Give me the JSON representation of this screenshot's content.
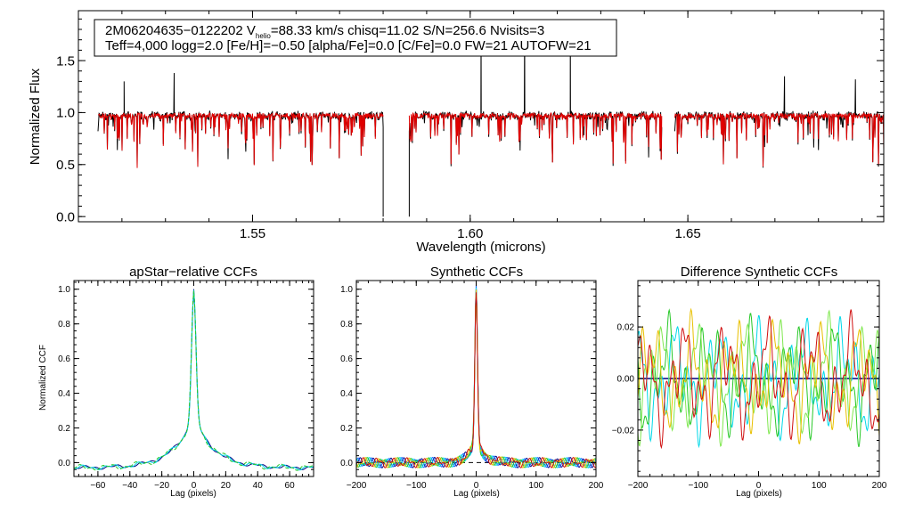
{
  "colors": {
    "background": "#ffffff",
    "axes": "#000000",
    "observed": "#000000",
    "model": "#e00000",
    "ccf_dark": "#000080",
    "ccf_blue": "#1060ff",
    "ccf_cyan": "#00d8e8",
    "ccf_green": "#28c828",
    "ccf_lightgreen": "#80e850",
    "ccf_yellow": "#e8c000",
    "ccf_orange": "#f08000",
    "ccf_red": "#d01010"
  },
  "chart_data": [
    {
      "id": "spectrum",
      "type": "line",
      "xlabel": "Wavelength (microns)",
      "ylabel": "Normalized Flux",
      "xlim": [
        1.51,
        1.695
      ],
      "ylim": [
        -0.05,
        1.98
      ],
      "xticks": [
        1.55,
        1.6,
        1.65
      ],
      "xtick_labels": [
        "1.55",
        "1.60",
        "1.65"
      ],
      "yticks": [
        0.0,
        0.5,
        1.0,
        1.5
      ],
      "ytick_labels": [
        "0.0",
        "0.5",
        "1.0",
        "1.5"
      ],
      "annotation": {
        "star_id": "2M06204635−0122202",
        "vhelio_prefix": "V",
        "vhelio_sub": "helio",
        "vhelio_rest": "=88.33 km/s  chisq=11.02  S/N=256.6  Nvisits=3",
        "line2": "Teff=4,000 logg=2.0 [Fe/H]=−0.50 [alpha/Fe]=0.0 [C/Fe]=0.0 FW=21 AUTOFW=21"
      },
      "chips": [
        {
          "x_start": 1.5145,
          "x_end": 1.58
        },
        {
          "x_start": 1.586,
          "x_end": 1.644
        },
        {
          "x_start": 1.647,
          "x_end": 1.695
        }
      ],
      "series": [
        {
          "name": "observed",
          "color": "#000000"
        },
        {
          "name": "model",
          "color": "#e00000"
        }
      ],
      "emission_spikes": [
        {
          "x": 1.5205,
          "y": 1.3
        },
        {
          "x": 1.532,
          "y": 1.38
        },
        {
          "x": 1.6025,
          "y": 1.8
        },
        {
          "x": 1.6125,
          "y": 1.84
        },
        {
          "x": 1.623,
          "y": 1.84
        },
        {
          "x": 1.6465,
          "y": 1.22
        },
        {
          "x": 1.6722,
          "y": 1.35
        },
        {
          "x": 1.6885,
          "y": 1.32
        }
      ],
      "gap_drops": [
        {
          "x": 1.58,
          "y": 0.0
        },
        {
          "x": 1.586,
          "y": 0.0
        }
      ]
    },
    {
      "id": "apstar_ccf",
      "type": "line",
      "title": "apStar−relative CCFs",
      "xlabel": "Lag (pixels)",
      "ylabel": "Normalized CCF",
      "xlim": [
        -75,
        75
      ],
      "ylim": [
        -0.08,
        1.05
      ],
      "xticks": [
        -60,
        -40,
        -20,
        0,
        20,
        40,
        60
      ],
      "xtick_labels": [
        "−60",
        "−40",
        "−20",
        "0",
        "20",
        "40",
        "60"
      ],
      "yticks": [
        0.0,
        0.2,
        0.4,
        0.6,
        0.8,
        1.0
      ],
      "ytick_labels": [
        "0.0",
        "0.2",
        "0.4",
        "0.6",
        "0.8",
        "1.0"
      ],
      "peak": {
        "x": 0,
        "y": 1.0
      },
      "series": [
        {
          "name": "visit 1",
          "color": "#000080"
        },
        {
          "name": "visit 2",
          "color": "#00d8e8"
        },
        {
          "name": "visit 3",
          "color": "#28c828"
        }
      ]
    },
    {
      "id": "synthetic_ccf",
      "type": "line",
      "title": "Synthetic CCFs",
      "xlabel": "Lag (pixels)",
      "xlim": [
        -200,
        200
      ],
      "ylim": [
        -0.08,
        1.05
      ],
      "xticks": [
        -200,
        -100,
        0,
        100,
        200
      ],
      "xtick_labels": [
        "−200",
        "−100",
        "0",
        "100",
        "200"
      ],
      "yticks": [
        0.0,
        0.2,
        0.4,
        0.6,
        0.8,
        1.0
      ],
      "ytick_labels": [
        "0.0",
        "0.2",
        "0.4",
        "0.6",
        "0.8",
        "1.0"
      ],
      "peak": {
        "x": 0,
        "y": 1.0
      },
      "reference_line": {
        "y": 0.0,
        "style": "dashed"
      },
      "series": [
        {
          "name": "s1",
          "color": "#000080"
        },
        {
          "name": "s2",
          "color": "#1060ff"
        },
        {
          "name": "s3",
          "color": "#00d8e8"
        },
        {
          "name": "s4",
          "color": "#28c828"
        },
        {
          "name": "s5",
          "color": "#e8c000"
        },
        {
          "name": "s6",
          "color": "#d01010"
        }
      ]
    },
    {
      "id": "difference_ccf",
      "type": "line",
      "title": "Difference Synthetic CCFs",
      "xlabel": "Lag (pixels)",
      "xlim": [
        -200,
        200
      ],
      "ylim": [
        -0.038,
        0.038
      ],
      "xticks": [
        -200,
        -100,
        0,
        100,
        200
      ],
      "xtick_labels": [
        "−200",
        "−100",
        "0",
        "100",
        "200"
      ],
      "yticks": [
        -0.02,
        0.0,
        0.02
      ],
      "ytick_labels": [
        "−0.02",
        "0.00",
        "0.02"
      ],
      "reference_line": {
        "y": 0.0,
        "style": "solid"
      },
      "series": [
        {
          "name": "d0",
          "color": "#000080"
        },
        {
          "name": "d1",
          "color": "#00d8e8"
        },
        {
          "name": "d2",
          "color": "#28c828"
        },
        {
          "name": "d3",
          "color": "#80e850"
        },
        {
          "name": "d4",
          "color": "#e8c000"
        },
        {
          "name": "d5",
          "color": "#d01010"
        }
      ]
    }
  ]
}
